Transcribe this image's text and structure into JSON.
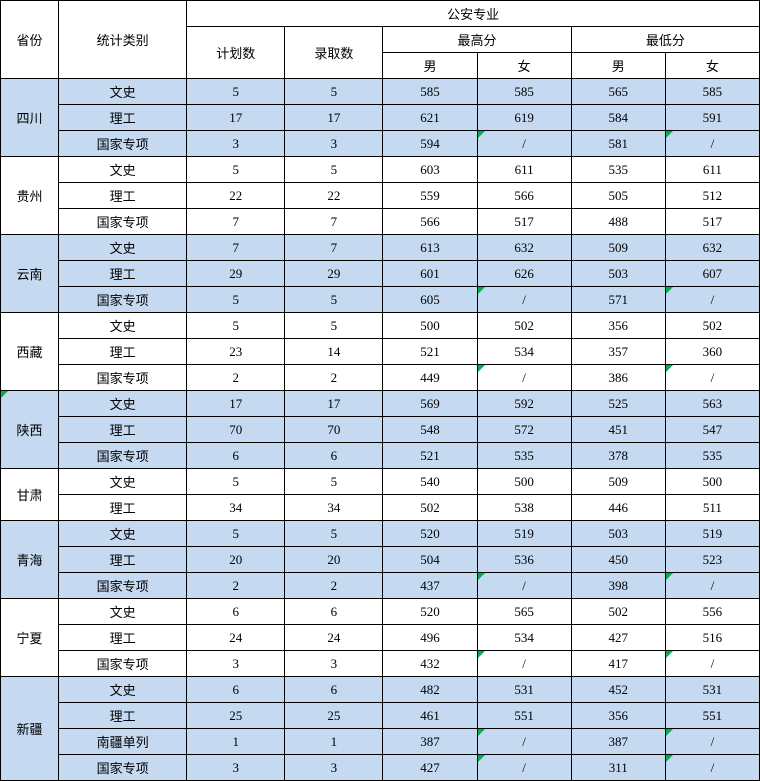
{
  "header": {
    "province": "省份",
    "stat_type": "统计类别",
    "major": "公安专业",
    "plan_count": "计划数",
    "admit_count": "录取数",
    "max_score": "最高分",
    "min_score": "最低分",
    "male": "男",
    "female": "女"
  },
  "stat_labels": {
    "wenshi": "文史",
    "ligong": "理工",
    "guojia": "国家专项",
    "nanjiang": "南疆单列"
  },
  "provinces": [
    {
      "name": "四川",
      "shaded": true,
      "rows": [
        {
          "type": "wenshi",
          "plan": "5",
          "admit": "5",
          "max_m": "585",
          "max_f": "585",
          "min_m": "565",
          "min_f": "585"
        },
        {
          "type": "ligong",
          "plan": "17",
          "admit": "17",
          "max_m": "621",
          "max_f": "619",
          "min_m": "584",
          "min_f": "591"
        },
        {
          "type": "guojia",
          "plan": "3",
          "admit": "3",
          "max_m": "594",
          "max_f": "/",
          "max_f_corner": true,
          "min_m": "581",
          "min_f": "/",
          "min_f_corner": true
        }
      ]
    },
    {
      "name": "贵州",
      "shaded": false,
      "rows": [
        {
          "type": "wenshi",
          "plan": "5",
          "admit": "5",
          "max_m": "603",
          "max_f": "611",
          "min_m": "535",
          "min_f": "611"
        },
        {
          "type": "ligong",
          "plan": "22",
          "admit": "22",
          "max_m": "559",
          "max_f": "566",
          "min_m": "505",
          "min_f": "512"
        },
        {
          "type": "guojia",
          "plan": "7",
          "admit": "7",
          "max_m": "566",
          "max_f": "517",
          "min_m": "488",
          "min_f": "517"
        }
      ]
    },
    {
      "name": "云南",
      "shaded": true,
      "rows": [
        {
          "type": "wenshi",
          "plan": "7",
          "admit": "7",
          "max_m": "613",
          "max_f": "632",
          "min_m": "509",
          "min_f": "632"
        },
        {
          "type": "ligong",
          "plan": "29",
          "admit": "29",
          "max_m": "601",
          "max_f": "626",
          "min_m": "503",
          "min_f": "607"
        },
        {
          "type": "guojia",
          "plan": "5",
          "admit": "5",
          "max_m": "605",
          "max_f": "/",
          "max_f_corner": true,
          "min_m": "571",
          "min_f": "/",
          "min_f_corner": true
        }
      ]
    },
    {
      "name": "西藏",
      "shaded": false,
      "rows": [
        {
          "type": "wenshi",
          "plan": "5",
          "admit": "5",
          "max_m": "500",
          "max_f": "502",
          "min_m": "356",
          "min_f": "502"
        },
        {
          "type": "ligong",
          "plan": "23",
          "admit": "14",
          "max_m": "521",
          "max_f": "534",
          "min_m": "357",
          "min_f": "360"
        },
        {
          "type": "guojia",
          "plan": "2",
          "admit": "2",
          "max_m": "449",
          "max_f": "/",
          "max_f_corner": true,
          "min_m": "386",
          "min_f": "/",
          "min_f_corner": true
        }
      ]
    },
    {
      "name": "陕西",
      "shaded": true,
      "prov_corner": true,
      "rows": [
        {
          "type": "wenshi",
          "plan": "17",
          "admit": "17",
          "max_m": "569",
          "max_f": "592",
          "min_m": "525",
          "min_f": "563"
        },
        {
          "type": "ligong",
          "plan": "70",
          "admit": "70",
          "max_m": "548",
          "max_f": "572",
          "min_m": "451",
          "min_f": "547"
        },
        {
          "type": "guojia",
          "plan": "6",
          "admit": "6",
          "max_m": "521",
          "max_f": "535",
          "min_m": "378",
          "min_f": "535"
        }
      ]
    },
    {
      "name": "甘肃",
      "shaded": false,
      "rows": [
        {
          "type": "wenshi",
          "plan": "5",
          "admit": "5",
          "max_m": "540",
          "max_f": "500",
          "min_m": "509",
          "min_f": "500"
        },
        {
          "type": "ligong",
          "plan": "34",
          "admit": "34",
          "max_m": "502",
          "max_f": "538",
          "min_m": "446",
          "min_f": "511"
        }
      ]
    },
    {
      "name": "青海",
      "shaded": true,
      "rows": [
        {
          "type": "wenshi",
          "plan": "5",
          "admit": "5",
          "max_m": "520",
          "max_f": "519",
          "min_m": "503",
          "min_f": "519"
        },
        {
          "type": "ligong",
          "plan": "20",
          "admit": "20",
          "max_m": "504",
          "max_f": "536",
          "min_m": "450",
          "min_f": "523"
        },
        {
          "type": "guojia",
          "plan": "2",
          "admit": "2",
          "max_m": "437",
          "max_f": "/",
          "max_f_corner": true,
          "min_m": "398",
          "min_f": "/",
          "min_f_corner": true
        }
      ]
    },
    {
      "name": "宁夏",
      "shaded": false,
      "rows": [
        {
          "type": "wenshi",
          "plan": "6",
          "admit": "6",
          "max_m": "520",
          "max_f": "565",
          "min_m": "502",
          "min_f": "556"
        },
        {
          "type": "ligong",
          "plan": "24",
          "admit": "24",
          "max_m": "496",
          "max_f": "534",
          "min_m": "427",
          "min_f": "516"
        },
        {
          "type": "guojia",
          "plan": "3",
          "admit": "3",
          "max_m": "432",
          "max_f": "/",
          "max_f_corner": true,
          "min_m": "417",
          "min_f": "/",
          "min_f_corner": true
        }
      ]
    },
    {
      "name": "新疆",
      "shaded": true,
      "rows": [
        {
          "type": "wenshi",
          "plan": "6",
          "admit": "6",
          "max_m": "482",
          "max_f": "531",
          "min_m": "452",
          "min_f": "531"
        },
        {
          "type": "ligong",
          "plan": "25",
          "admit": "25",
          "max_m": "461",
          "max_f": "551",
          "min_m": "356",
          "min_f": "551"
        },
        {
          "type": "nanjiang",
          "plan": "1",
          "admit": "1",
          "max_m": "387",
          "max_f": "/",
          "max_f_corner": true,
          "min_m": "387",
          "min_f": "/",
          "min_f_corner": true
        },
        {
          "type": "guojia",
          "plan": "3",
          "admit": "3",
          "max_m": "427",
          "max_f": "/",
          "max_f_corner": true,
          "min_m": "311",
          "min_f": "/",
          "min_f_corner": true
        }
      ]
    }
  ],
  "colors": {
    "shaded_bg": "#c5d9f1",
    "border": "#000000",
    "corner_marker": "#00b050",
    "background": "#ffffff"
  },
  "typography": {
    "font_family": "SimSun",
    "font_size_pt": 10
  }
}
